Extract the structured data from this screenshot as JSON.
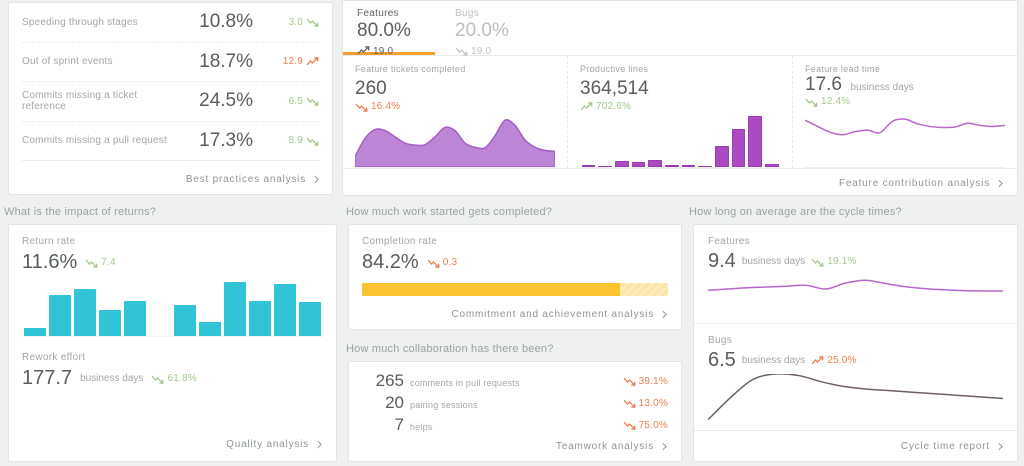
{
  "colors": {
    "accent_orange": "#f5a02e",
    "trend_good": "#a3c98b",
    "trend_bad": "#ed7d51",
    "trend_neutral": "#5f6466",
    "trend_muted": "#c2c6c6",
    "purple_area_fill": "#bd85d6",
    "purple_area_stroke": "#a55cc5",
    "purple_bar": "#ab4ac3",
    "cyan_bar": "#31c3d7",
    "yellow_fill": "#fbc330",
    "yellow_track": "#fce4a6",
    "line_purple": "#b767ca",
    "line_dark": "#6e615c"
  },
  "best_practices": {
    "rows": [
      {
        "label": "Speeding through stages",
        "value": "10.8%",
        "trend": {
          "value": "3.0",
          "dir": "down",
          "tone": "good",
          "icon_after": true
        }
      },
      {
        "label": "Out of sprint events",
        "value": "18.7%",
        "trend": {
          "value": "12.9",
          "dir": "up",
          "tone": "bad",
          "icon_after": true
        }
      },
      {
        "label": "Commits missing a ticket reference",
        "value": "24.5%",
        "trend": {
          "value": "6.5",
          "dir": "down",
          "tone": "good",
          "icon_after": true
        }
      },
      {
        "label": "Commits missing a pull request",
        "value": "17.3%",
        "trend": {
          "value": "8.9",
          "dir": "down",
          "tone": "good",
          "icon_after": true
        }
      }
    ],
    "link": "Best practices analysis"
  },
  "feature_contribution": {
    "tabs": [
      {
        "label": "Features",
        "value": "80.0%",
        "trend": {
          "value": "19.0",
          "dir": "up",
          "tone": "neutral"
        }
      },
      {
        "label": "Bugs",
        "value": "20.0%",
        "trend": {
          "value": "19.0",
          "dir": "down",
          "tone": "muted"
        }
      }
    ],
    "metrics": [
      {
        "label": "Feature tickets completed",
        "value": "260",
        "unit": "",
        "trend": {
          "value": "16.4%",
          "dir": "down",
          "tone": "bad"
        }
      },
      {
        "label": "Productive lines",
        "value": "364,514",
        "unit": "",
        "trend": {
          "value": "702.6%",
          "dir": "up",
          "tone": "good"
        }
      },
      {
        "label": "Feature lead time",
        "value": "17.6",
        "unit": "business days",
        "trend": {
          "value": "12.4%",
          "dir": "down",
          "tone": "good"
        }
      }
    ],
    "link": "Feature contribution analysis"
  },
  "quality": {
    "title": "What is the impact of returns?",
    "return_rate": {
      "label": "Return rate",
      "value": "11.6%",
      "trend": {
        "value": "7.4",
        "dir": "down",
        "tone": "good"
      }
    },
    "rework": {
      "label": "Rework effort",
      "value": "177.7",
      "unit": "business days",
      "trend": {
        "value": "61.8%",
        "dir": "down",
        "tone": "good"
      }
    },
    "link": "Quality analysis"
  },
  "commitment": {
    "title": "How much work started gets completed?",
    "completion": {
      "label": "Completion rate",
      "value": "84.2%",
      "trend": {
        "value": "0.3",
        "dir": "down",
        "tone": "bad"
      }
    },
    "link": "Commitment and achievement analysis"
  },
  "teamwork": {
    "title": "How much collaboration has there been?",
    "rows": [
      {
        "value": "265",
        "label": "comments in pull requests",
        "trend": {
          "value": "39.1%",
          "dir": "down",
          "tone": "bad"
        }
      },
      {
        "value": "20",
        "label": "pairing sessions",
        "trend": {
          "value": "13.0%",
          "dir": "down",
          "tone": "bad"
        }
      },
      {
        "value": "7",
        "label": "helps",
        "trend": {
          "value": "75.0%",
          "dir": "down",
          "tone": "bad"
        }
      }
    ],
    "link": "Teamwork analysis"
  },
  "cycle_times": {
    "title": "How long on average are the cycle times?",
    "features": {
      "label": "Features",
      "value": "9.4",
      "unit": "business days",
      "trend": {
        "value": "19.1%",
        "dir": "down",
        "tone": "good"
      }
    },
    "bugs": {
      "label": "Bugs",
      "value": "6.5",
      "unit": "business days",
      "trend": {
        "value": "25.0%",
        "dir": "up",
        "tone": "bad"
      }
    },
    "link": "Cycle time report"
  },
  "chart_data": [
    {
      "id": "feature-tickets-area",
      "type": "area",
      "title": "Feature tickets completed trend",
      "unit": "relative height % (no axis labels shown)",
      "values": [
        20,
        55,
        72,
        70,
        58,
        46,
        42,
        43,
        58,
        76,
        70,
        46,
        38,
        37,
        60,
        90,
        80,
        52,
        38,
        32,
        30
      ],
      "color": "#bd85d6",
      "stroke": "#a55cc5"
    },
    {
      "id": "productive-lines-bars",
      "type": "bar",
      "title": "Productive lines trend",
      "unit": "relative height %",
      "values": [
        3,
        2,
        11,
        9,
        13,
        4,
        3,
        2,
        40,
        73,
        98,
        5
      ],
      "color": "#ab4ac3",
      "stroke": "#9c3bb5"
    },
    {
      "id": "feature-lead-line",
      "type": "line",
      "title": "Feature lead time trend",
      "unit": "relative height %",
      "values": [
        90,
        78,
        67,
        62,
        68,
        71,
        66,
        88,
        92,
        83,
        78,
        76,
        77,
        84,
        80,
        78,
        80
      ],
      "color": "#b767ca"
    },
    {
      "id": "return-rate-bars",
      "type": "bar",
      "title": "Return rate by period (gap separates two groups)",
      "unit": "relative height %",
      "values": [
        15,
        73,
        84,
        47,
        62,
        null,
        56,
        25,
        96,
        62,
        93,
        60
      ],
      "color": "#31c3d7"
    },
    {
      "id": "completion-progress",
      "type": "progress",
      "title": "Completion rate",
      "percent": 84.2,
      "color": "#fbc330",
      "track": "#fce4a6"
    },
    {
      "id": "cycle-features-line",
      "type": "line",
      "title": "Features cycle time trend",
      "unit": "relative height %",
      "values": [
        62,
        65,
        68,
        70,
        72,
        74,
        65,
        80,
        87,
        79,
        71,
        66,
        63,
        61,
        60,
        60
      ],
      "color": "#b767ca"
    },
    {
      "id": "cycle-bugs-line",
      "type": "line",
      "title": "Bugs cycle time trend",
      "unit": "relative height %",
      "values": [
        12,
        55,
        90,
        100,
        97,
        85,
        76,
        71,
        68,
        65,
        62,
        59,
        56,
        53
      ],
      "color": "#6e615c"
    }
  ]
}
